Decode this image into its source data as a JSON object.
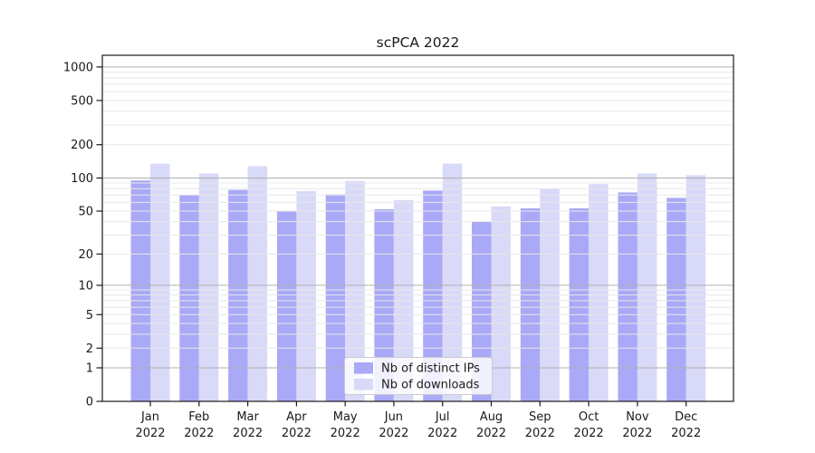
{
  "chart_data": {
    "type": "bar",
    "title": "scPCA 2022",
    "year": "2022",
    "categories": [
      "Jan",
      "Feb",
      "Mar",
      "Apr",
      "May",
      "Jun",
      "Jul",
      "Aug",
      "Sep",
      "Oct",
      "Nov",
      "Dec"
    ],
    "series": [
      {
        "name": "Nb of distinct IPs",
        "color": "#a9a9f7",
        "values": [
          95,
          70,
          78,
          50,
          71,
          52,
          77,
          40,
          53,
          53,
          74,
          66
        ]
      },
      {
        "name": "Nb of downloads",
        "color": "#d9d9f8",
        "values": [
          135,
          110,
          128,
          76,
          94,
          63,
          135,
          55,
          80,
          88,
          110,
          106
        ]
      }
    ],
    "y_axis": {
      "scale": "log1p",
      "tick_values": [
        0,
        1,
        2,
        5,
        10,
        20,
        50,
        100,
        200,
        500,
        1000
      ],
      "tick_labels": [
        "0",
        "1",
        "2",
        "5",
        "10",
        "20",
        "50",
        "100",
        "200",
        "500",
        "1000"
      ],
      "range": [
        0,
        1300
      ]
    },
    "x_axis": {
      "label_line2": "2022"
    },
    "grid": {
      "on": true,
      "major_at": [
        1,
        10,
        100,
        1000
      ],
      "minor_at": [
        2,
        3,
        4,
        5,
        6,
        7,
        8,
        9,
        20,
        30,
        40,
        50,
        60,
        70,
        80,
        90,
        200,
        300,
        400,
        500,
        600,
        700,
        800,
        900
      ],
      "major_color": "#b0b0b0",
      "minor_color": "#e8e8e8"
    },
    "legend": {
      "position": "lower-center"
    }
  }
}
